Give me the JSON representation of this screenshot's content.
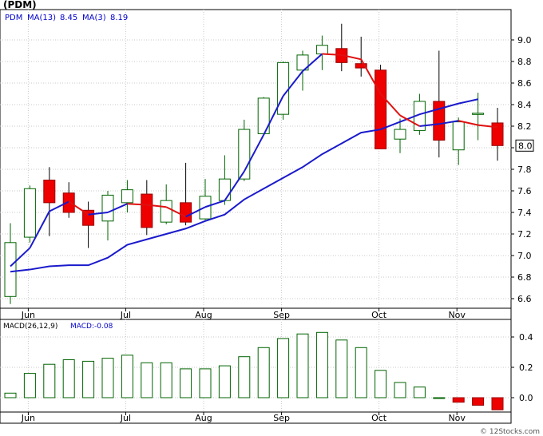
{
  "chart_data": [
    {
      "type": "candlestick",
      "title": "(PDM)",
      "legend": {
        "symbol": "PDM",
        "ma_long": {
          "label": "MA(13)",
          "value": "8.45",
          "color": "#1a1acc"
        },
        "ma_short": {
          "label": "MA(3)",
          "value": "8.19",
          "color": "#e01010"
        }
      },
      "y_ticks": [
        "9.0",
        "8.8",
        "8.6",
        "8.4",
        "8.2",
        "8.0",
        "7.8",
        "7.6",
        "7.4",
        "7.2",
        "7.0",
        "6.8",
        "6.6"
      ],
      "ylim": [
        6.5,
        9.2
      ],
      "last_price_label": "8.0",
      "x_month_labels": [
        {
          "label": "Jun",
          "week": 1
        },
        {
          "label": "Jul",
          "week": 6
        },
        {
          "label": "Aug",
          "week": 10
        },
        {
          "label": "Sep",
          "week": 14
        },
        {
          "label": "Oct",
          "week": 19
        },
        {
          "label": "Nov",
          "week": 23
        }
      ],
      "candles": [
        {
          "week": 0,
          "open": 6.62,
          "high": 7.3,
          "low": 6.55,
          "close": 7.12
        },
        {
          "week": 1,
          "open": 7.17,
          "high": 7.65,
          "low": 7.12,
          "close": 7.62
        },
        {
          "week": 2,
          "open": 7.7,
          "high": 7.82,
          "low": 7.18,
          "close": 7.49
        },
        {
          "week": 3,
          "open": 7.58,
          "high": 7.68,
          "low": 7.35,
          "close": 7.4
        },
        {
          "week": 4,
          "open": 7.42,
          "high": 7.5,
          "low": 7.07,
          "close": 7.28
        },
        {
          "week": 5,
          "open": 7.32,
          "high": 7.6,
          "low": 7.14,
          "close": 7.56
        },
        {
          "week": 6,
          "open": 7.49,
          "high": 7.7,
          "low": 7.4,
          "close": 7.61
        },
        {
          "week": 7,
          "open": 7.57,
          "high": 7.7,
          "low": 7.19,
          "close": 7.26
        },
        {
          "week": 8,
          "open": 7.31,
          "high": 7.66,
          "low": 7.29,
          "close": 7.51
        },
        {
          "week": 9,
          "open": 7.49,
          "high": 7.86,
          "low": 7.28,
          "close": 7.31
        },
        {
          "week": 10,
          "open": 7.34,
          "high": 7.71,
          "low": 7.33,
          "close": 7.55
        },
        {
          "week": 11,
          "open": 7.51,
          "high": 7.93,
          "low": 7.47,
          "close": 7.71
        },
        {
          "week": 12,
          "open": 7.71,
          "high": 8.26,
          "low": 7.69,
          "close": 8.17
        },
        {
          "week": 13,
          "open": 8.13,
          "high": 8.47,
          "low": 8.12,
          "close": 8.46
        },
        {
          "week": 14,
          "open": 8.31,
          "high": 8.8,
          "low": 8.26,
          "close": 8.79
        },
        {
          "week": 15,
          "open": 8.72,
          "high": 8.9,
          "low": 8.53,
          "close": 8.86
        },
        {
          "week": 16,
          "open": 8.87,
          "high": 9.04,
          "low": 8.72,
          "close": 8.95
        },
        {
          "week": 17,
          "open": 8.92,
          "high": 9.15,
          "low": 8.71,
          "close": 8.79
        },
        {
          "week": 18,
          "open": 8.78,
          "high": 9.03,
          "low": 8.66,
          "close": 8.74
        },
        {
          "week": 19,
          "open": 8.72,
          "high": 8.77,
          "low": 7.99,
          "close": 7.99
        },
        {
          "week": 20,
          "open": 8.08,
          "high": 8.27,
          "low": 7.95,
          "close": 8.17
        },
        {
          "week": 21,
          "open": 8.16,
          "high": 8.5,
          "low": 8.12,
          "close": 8.43
        },
        {
          "week": 22,
          "open": 8.43,
          "high": 8.9,
          "low": 7.91,
          "close": 8.07
        },
        {
          "week": 23,
          "open": 7.98,
          "high": 8.28,
          "low": 7.84,
          "close": 8.24
        },
        {
          "week": 24,
          "open": 8.31,
          "high": 8.51,
          "low": 8.07,
          "close": 8.32
        },
        {
          "week": 25,
          "open": 8.23,
          "high": 8.37,
          "low": 7.88,
          "close": 8.02
        }
      ],
      "ma13": [
        {
          "week": 0,
          "value": 6.85
        },
        {
          "week": 1,
          "value": 6.87
        },
        {
          "week": 2,
          "value": 6.9
        },
        {
          "week": 3,
          "value": 6.91
        },
        {
          "week": 4,
          "value": 6.91
        },
        {
          "week": 5,
          "value": 6.98
        },
        {
          "week": 6,
          "value": 7.1
        },
        {
          "week": 7,
          "value": 7.15
        },
        {
          "week": 8,
          "value": 7.2
        },
        {
          "week": 9,
          "value": 7.25
        },
        {
          "week": 10,
          "value": 7.32
        },
        {
          "week": 11,
          "value": 7.38
        },
        {
          "week": 12,
          "value": 7.52
        },
        {
          "week": 13,
          "value": 7.62
        },
        {
          "week": 14,
          "value": 7.72
        },
        {
          "week": 15,
          "value": 7.82
        },
        {
          "week": 16,
          "value": 7.94
        },
        {
          "week": 17,
          "value": 8.04
        },
        {
          "week": 18,
          "value": 8.14
        },
        {
          "week": 19,
          "value": 8.17
        },
        {
          "week": 20,
          "value": 8.24
        },
        {
          "week": 21,
          "value": 8.31
        },
        {
          "week": 22,
          "value": 8.36
        },
        {
          "week": 23,
          "value": 8.41
        },
        {
          "week": 24,
          "value": 8.45
        }
      ],
      "ma3": [
        {
          "week": 0,
          "value": 6.9
        },
        {
          "week": 1,
          "value": 7.07
        },
        {
          "week": 2,
          "value": 7.41
        },
        {
          "week": 3,
          "value": 7.5
        },
        {
          "week": 4,
          "value": 7.38
        },
        {
          "week": 5,
          "value": 7.4
        },
        {
          "week": 6,
          "value": 7.48
        },
        {
          "week": 7,
          "value": 7.47
        },
        {
          "week": 8,
          "value": 7.45
        },
        {
          "week": 9,
          "value": 7.36
        },
        {
          "week": 10,
          "value": 7.45
        },
        {
          "week": 11,
          "value": 7.51
        },
        {
          "week": 12,
          "value": 7.78
        },
        {
          "week": 13,
          "value": 8.12
        },
        {
          "week": 14,
          "value": 8.48
        },
        {
          "week": 15,
          "value": 8.71
        },
        {
          "week": 16,
          "value": 8.87
        },
        {
          "week": 17,
          "value": 8.86
        },
        {
          "week": 18,
          "value": 8.82
        },
        {
          "week": 19,
          "value": 8.5
        },
        {
          "week": 20,
          "value": 8.3
        },
        {
          "week": 21,
          "value": 8.2
        },
        {
          "week": 22,
          "value": 8.22
        },
        {
          "week": 23,
          "value": 8.25
        },
        {
          "week": 24,
          "value": 8.21
        },
        {
          "week": 25,
          "value": 8.19
        }
      ]
    },
    {
      "type": "bar",
      "title": "MACD(26,12,9)",
      "value_label": "MACD:-0.08",
      "y_ticks": [
        "0.4",
        "0.2",
        "0.0"
      ],
      "ylim": [
        -0.1,
        0.46
      ],
      "x_month_labels": [
        {
          "label": "Jun",
          "week": 1
        },
        {
          "label": "Jul",
          "week": 6
        },
        {
          "label": "Aug",
          "week": 10
        },
        {
          "label": "Sep",
          "week": 14
        },
        {
          "label": "Oct",
          "week": 19
        },
        {
          "label": "Nov",
          "week": 23
        }
      ],
      "values": [
        0.03,
        0.16,
        0.22,
        0.25,
        0.24,
        0.26,
        0.28,
        0.23,
        0.23,
        0.19,
        0.19,
        0.21,
        0.27,
        0.33,
        0.39,
        0.42,
        0.43,
        0.38,
        0.33,
        0.18,
        0.1,
        0.07,
        0.0,
        -0.03,
        -0.05,
        -0.08
      ]
    }
  ],
  "footer": "© 12Stocks.com"
}
